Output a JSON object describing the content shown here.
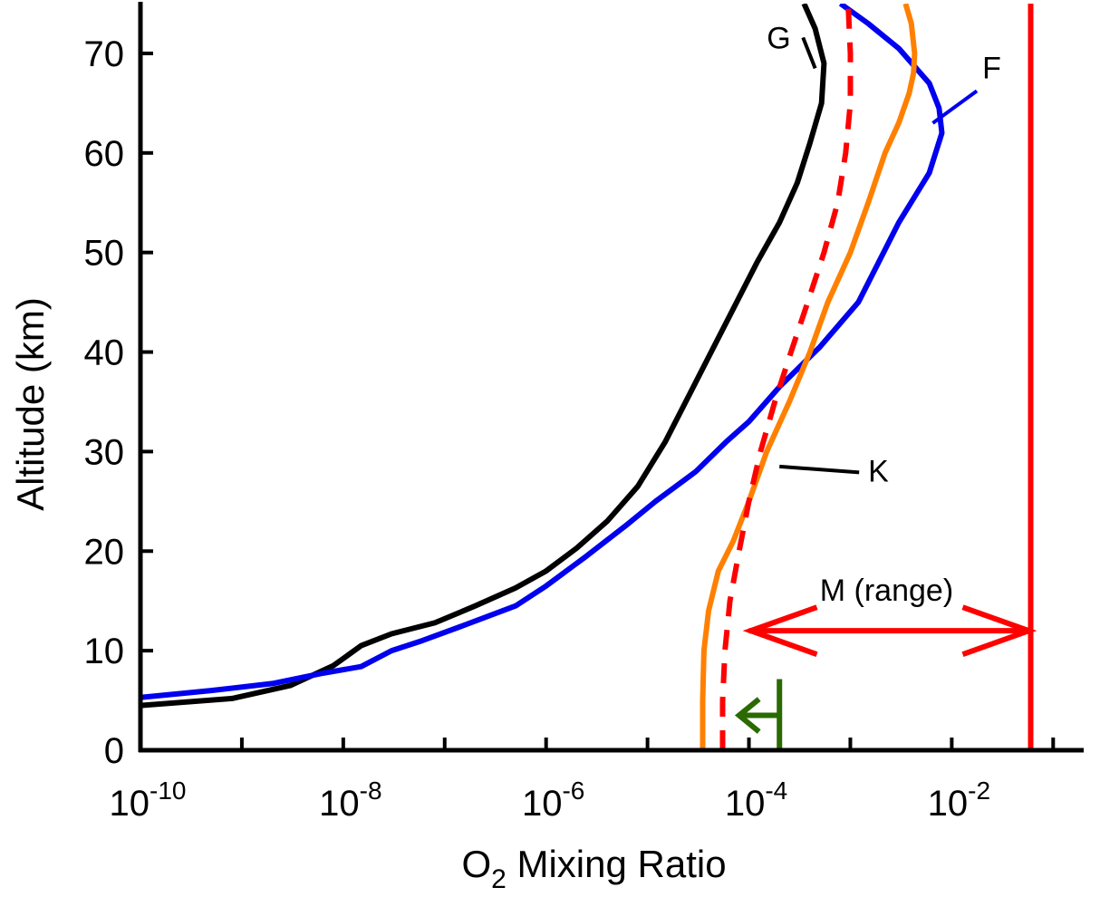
{
  "chart_data": {
    "type": "line",
    "title": "",
    "xlabel_main": "O",
    "xlabel_sub": "2",
    "xlabel_rest": " Mixing Ratio",
    "ylabel": "Altitude (km)",
    "xscale": "log",
    "xlim": [
      1e-10,
      0.2
    ],
    "ylim": [
      0,
      75
    ],
    "grid": false,
    "legend": "none",
    "x_ticks": [
      {
        "base": "10",
        "exp": "-10",
        "value": 1e-10
      },
      {
        "base": "10",
        "exp": "-8",
        "value": 1e-08
      },
      {
        "base": "10",
        "exp": "-6",
        "value": 1e-06
      },
      {
        "base": "10",
        "exp": "-4",
        "value": 0.0001
      },
      {
        "base": "10",
        "exp": "-2",
        "value": 0.01
      }
    ],
    "y_ticks": [
      0,
      10,
      20,
      30,
      40,
      50,
      60,
      70
    ],
    "series": [
      {
        "name": "G",
        "color": "#000000",
        "style": "solid",
        "x": [
          1e-10,
          8e-10,
          3e-09,
          8e-09,
          1.5e-08,
          3e-08,
          8e-08,
          2e-07,
          5e-07,
          1e-06,
          2e-06,
          4e-06,
          8e-06,
          1.5e-05,
          3e-05,
          6e-05,
          0.00012,
          0.0002,
          0.0003,
          0.0004,
          0.00052,
          0.00055,
          0.00045,
          0.00035
        ],
        "y": [
          4.5,
          5.2,
          6.5,
          8.5,
          10.5,
          11.7,
          12.8,
          14.5,
          16.3,
          18,
          20.3,
          23,
          26.5,
          31,
          37,
          43,
          49,
          53,
          57,
          61,
          65,
          69,
          72.5,
          75
        ]
      },
      {
        "name": "F",
        "color": "#0000ee",
        "style": "solid",
        "x": [
          1e-10,
          5e-10,
          2e-09,
          6e-09,
          1.5e-08,
          3e-08,
          6e-08,
          1.5e-07,
          5e-07,
          1e-06,
          2.5e-06,
          6e-06,
          1.2e-05,
          3e-05,
          6e-05,
          0.0001,
          0.0002,
          0.0005,
          0.0012,
          0.003,
          0.006,
          0.008,
          0.0075,
          0.006,
          0.003,
          0.0015,
          0.0008
        ],
        "y": [
          5.3,
          6.0,
          6.7,
          7.7,
          8.4,
          10,
          11,
          12.5,
          14.5,
          16.5,
          19.5,
          22.5,
          25,
          28,
          31,
          33,
          36.5,
          40.5,
          45,
          53,
          58,
          62,
          64.5,
          67,
          70.5,
          73,
          75
        ]
      },
      {
        "name": "K",
        "color": "#ff8000",
        "style": "solid",
        "x": [
          3.5e-05,
          3.5e-05,
          3.6e-05,
          4e-05,
          5e-05,
          7e-05,
          0.0001,
          0.00015,
          0.00025,
          0.0004,
          0.0006,
          0.001,
          0.0015,
          0.0022,
          0.003,
          0.0038,
          0.0042,
          0.0043,
          0.004,
          0.0035
        ],
        "y": [
          0,
          5,
          10,
          14,
          18,
          21,
          25,
          30,
          35,
          40,
          45,
          50,
          55,
          60,
          63,
          66,
          68,
          70,
          73,
          75
        ]
      },
      {
        "name": "dashed",
        "color": "#ff0000",
        "style": "dashed",
        "x": [
          5.5e-05,
          5.5e-05,
          5.8e-05,
          6.5e-05,
          8e-05,
          0.0001,
          0.00013,
          0.00018,
          0.00026,
          0.00038,
          0.00055,
          0.00075,
          0.0009,
          0.001,
          0.001,
          0.00095
        ],
        "y": [
          0,
          5,
          10,
          15,
          20,
          25,
          30,
          35,
          40,
          45,
          50,
          55,
          60,
          65,
          70,
          75
        ]
      },
      {
        "name": "M",
        "color": "#ff0000",
        "style": "solid",
        "x": [
          0.06,
          0.06,
          0.06,
          0.06
        ],
        "y": [
          0,
          30,
          60,
          75
        ]
      }
    ],
    "annotations": [
      {
        "text": "G",
        "x": 0.00015,
        "y": 70.5,
        "color": "#000000",
        "leader_to_x": 0.00045,
        "leader_to_y": 68.5
      },
      {
        "text": "F",
        "x": 0.02,
        "y": 67.5,
        "color": "#0000ee",
        "leader_to_x": 0.0065,
        "leader_to_y": 63
      },
      {
        "text": "K",
        "x": 0.0015,
        "y": 27,
        "color": "#000000",
        "leader_to_x": 0.0002,
        "leader_to_y": 28.5
      },
      {
        "text": "M (range)",
        "x": 0.0005,
        "y": 15,
        "color": "#000000"
      }
    ],
    "range_arrow": {
      "from": 0.0001,
      "to": 0.06,
      "y": 12,
      "color": "#ff0000"
    },
    "limit_arrow": {
      "from": 0.0002,
      "to": 8e-05,
      "y": 3.5,
      "color": "#2a6a00"
    }
  }
}
